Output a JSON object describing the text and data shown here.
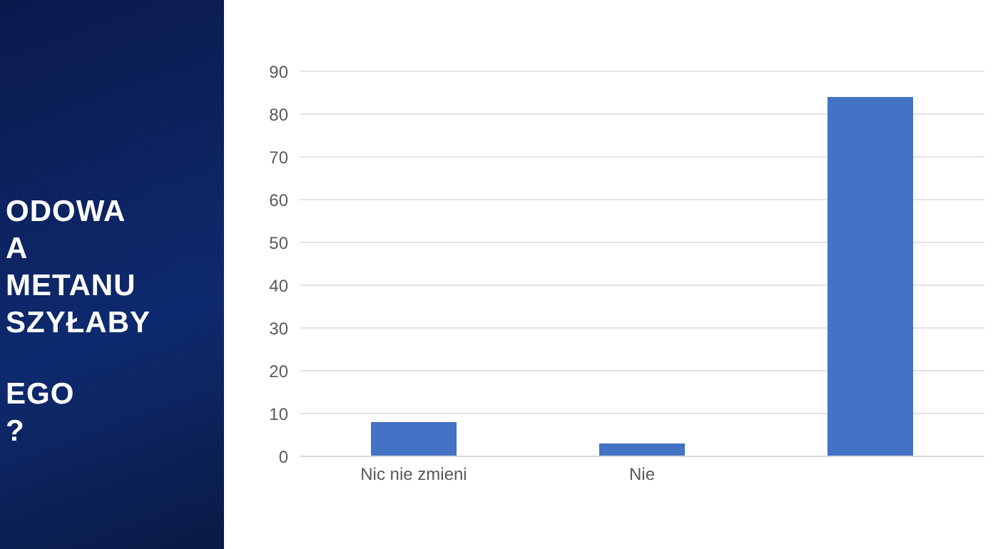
{
  "chart_data": {
    "type": "bar",
    "categories": [
      "Nic nie zmieni",
      "Nie",
      null
    ],
    "values": [
      8,
      3,
      84
    ],
    "color": "#4472c4",
    "ylim": [
      0,
      90
    ],
    "yticks": [
      0,
      10,
      20,
      30,
      40,
      50,
      60,
      70,
      80,
      90
    ],
    "grid": "y",
    "annotations": [
      "ODOWA",
      "A",
      "METANU",
      "SZYŁABY",
      "EGO",
      "?"
    ]
  }
}
